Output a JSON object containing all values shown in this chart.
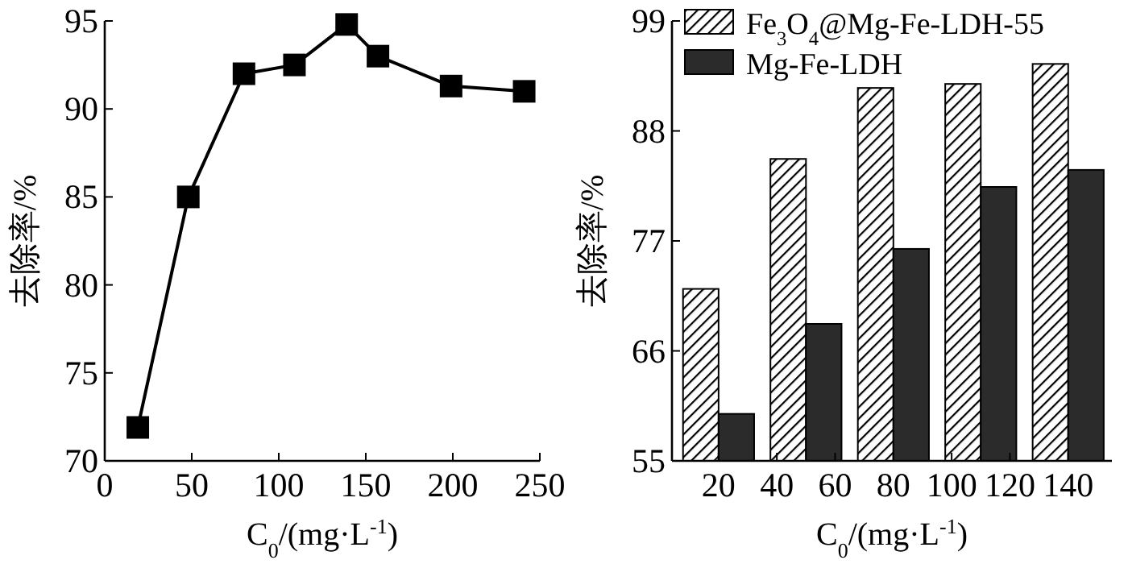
{
  "chart_data": [
    {
      "type": "line",
      "x": [
        19,
        48,
        80,
        109,
        139,
        157,
        199,
        241
      ],
      "values": [
        71.9,
        85.0,
        92.0,
        92.5,
        94.8,
        93.0,
        91.3,
        91.0
      ],
      "color": "#000000",
      "marker": "square",
      "line_style": "solid",
      "xlim": [
        0,
        250
      ],
      "xticks": [
        0,
        50,
        100,
        150,
        200,
        250
      ],
      "ylim": [
        70,
        95
      ],
      "yticks": [
        70,
        75,
        80,
        85,
        90,
        95
      ],
      "xlabel": "C$_{0}$/(mg·L$^{-1}$)",
      "ylabel": "去除率/%",
      "grid": false,
      "legend": false
    },
    {
      "type": "bar",
      "x": [
        20,
        50,
        80,
        110,
        140
      ],
      "series": [
        {
          "name": "Fe$_{3}$O$_{4}$@Mg-Fe-LDH-55",
          "color": "#000000",
          "values": [
            72.2,
            85.2,
            92.3,
            92.7,
            94.7
          ]
        },
        {
          "name": "Mg-Fe-LDH",
          "color": "#2b2b2b",
          "values": [
            59.7,
            68.7,
            76.2,
            82.4,
            84.1
          ]
        }
      ],
      "xlim": [
        4,
        155
      ],
      "xticks": [
        20,
        40,
        60,
        80,
        100,
        120,
        140
      ],
      "ylim": [
        55,
        99
      ],
      "yticks": [
        55,
        66,
        77,
        88,
        99
      ],
      "xlabel": "C$_{0}$/(mg·L$^{-1}$)",
      "ylabel": "去除率/%",
      "grid": false,
      "legend": "top left"
    }
  ]
}
